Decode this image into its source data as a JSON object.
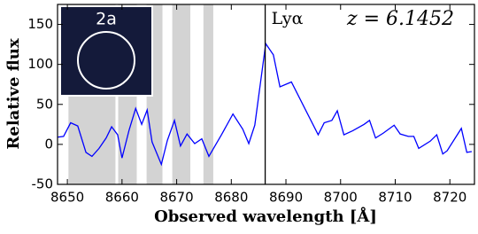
{
  "chart_data": {
    "type": "line",
    "xlabel": "Observed wavelength [Å]",
    "ylabel": "Relative flux",
    "x": [
      8648.2,
      8649.3,
      8650.6,
      8651.9,
      8653.4,
      8654.5,
      8655.8,
      8657.1,
      8658.1,
      8659.2,
      8660.0,
      8661.3,
      8662.5,
      8663.6,
      8664.6,
      8665.5,
      8667.2,
      8668.3,
      8669.6,
      8670.7,
      8671.9,
      8673.3,
      8674.6,
      8675.9,
      8678.2,
      8680.3,
      8682.1,
      8683.2,
      8684.3,
      8686.3,
      8687.7,
      8688.9,
      8691.0,
      8695.9,
      8697.0,
      8698.4,
      8699.4,
      8700.6,
      8702.2,
      8704.3,
      8705.3,
      8706.4,
      8707.8,
      8709.8,
      8710.9,
      8712.4,
      8713.4,
      8714.3,
      8716.4,
      8717.6,
      8718.7,
      8719.5,
      8722.1,
      8723.1,
      8724.0
    ],
    "series": [
      {
        "color": "#0000ff",
        "values": [
          9,
          10,
          27,
          23,
          -10,
          -15,
          -5,
          8,
          22,
          12,
          -17,
          18,
          45,
          25,
          43,
          3,
          -25,
          5,
          30,
          -2,
          13,
          1,
          7,
          -15,
          12,
          38,
          19,
          1,
          24,
          126,
          112,
          72,
          78,
          12,
          27,
          30,
          42,
          12,
          17,
          25,
          30,
          8,
          14,
          24,
          13,
          10,
          10,
          -5,
          4,
          12,
          -12,
          -8,
          20,
          -10,
          -9
        ]
      }
    ],
    "shaded": [
      [
        8650.2,
        8658.8
      ],
      [
        8659.3,
        8662.7
      ],
      [
        8664.5,
        8667.4
      ],
      [
        8669.2,
        8672.5
      ],
      [
        8674.9,
        8676.7
      ]
    ],
    "shade_color": "#d3d3d3",
    "vline": {
      "x": 8686.2,
      "label": "Lyα"
    },
    "annotation": "z = 6.1452",
    "inset_label": "2a",
    "xlim": [
      8648.2,
      8724.5
    ],
    "ylim": [
      -50,
      175
    ],
    "xticks": [
      8650,
      8660,
      8670,
      8680,
      8690,
      8700,
      8710,
      8720
    ],
    "yticks": [
      -50,
      0,
      50,
      100,
      150
    ],
    "grid": false
  }
}
